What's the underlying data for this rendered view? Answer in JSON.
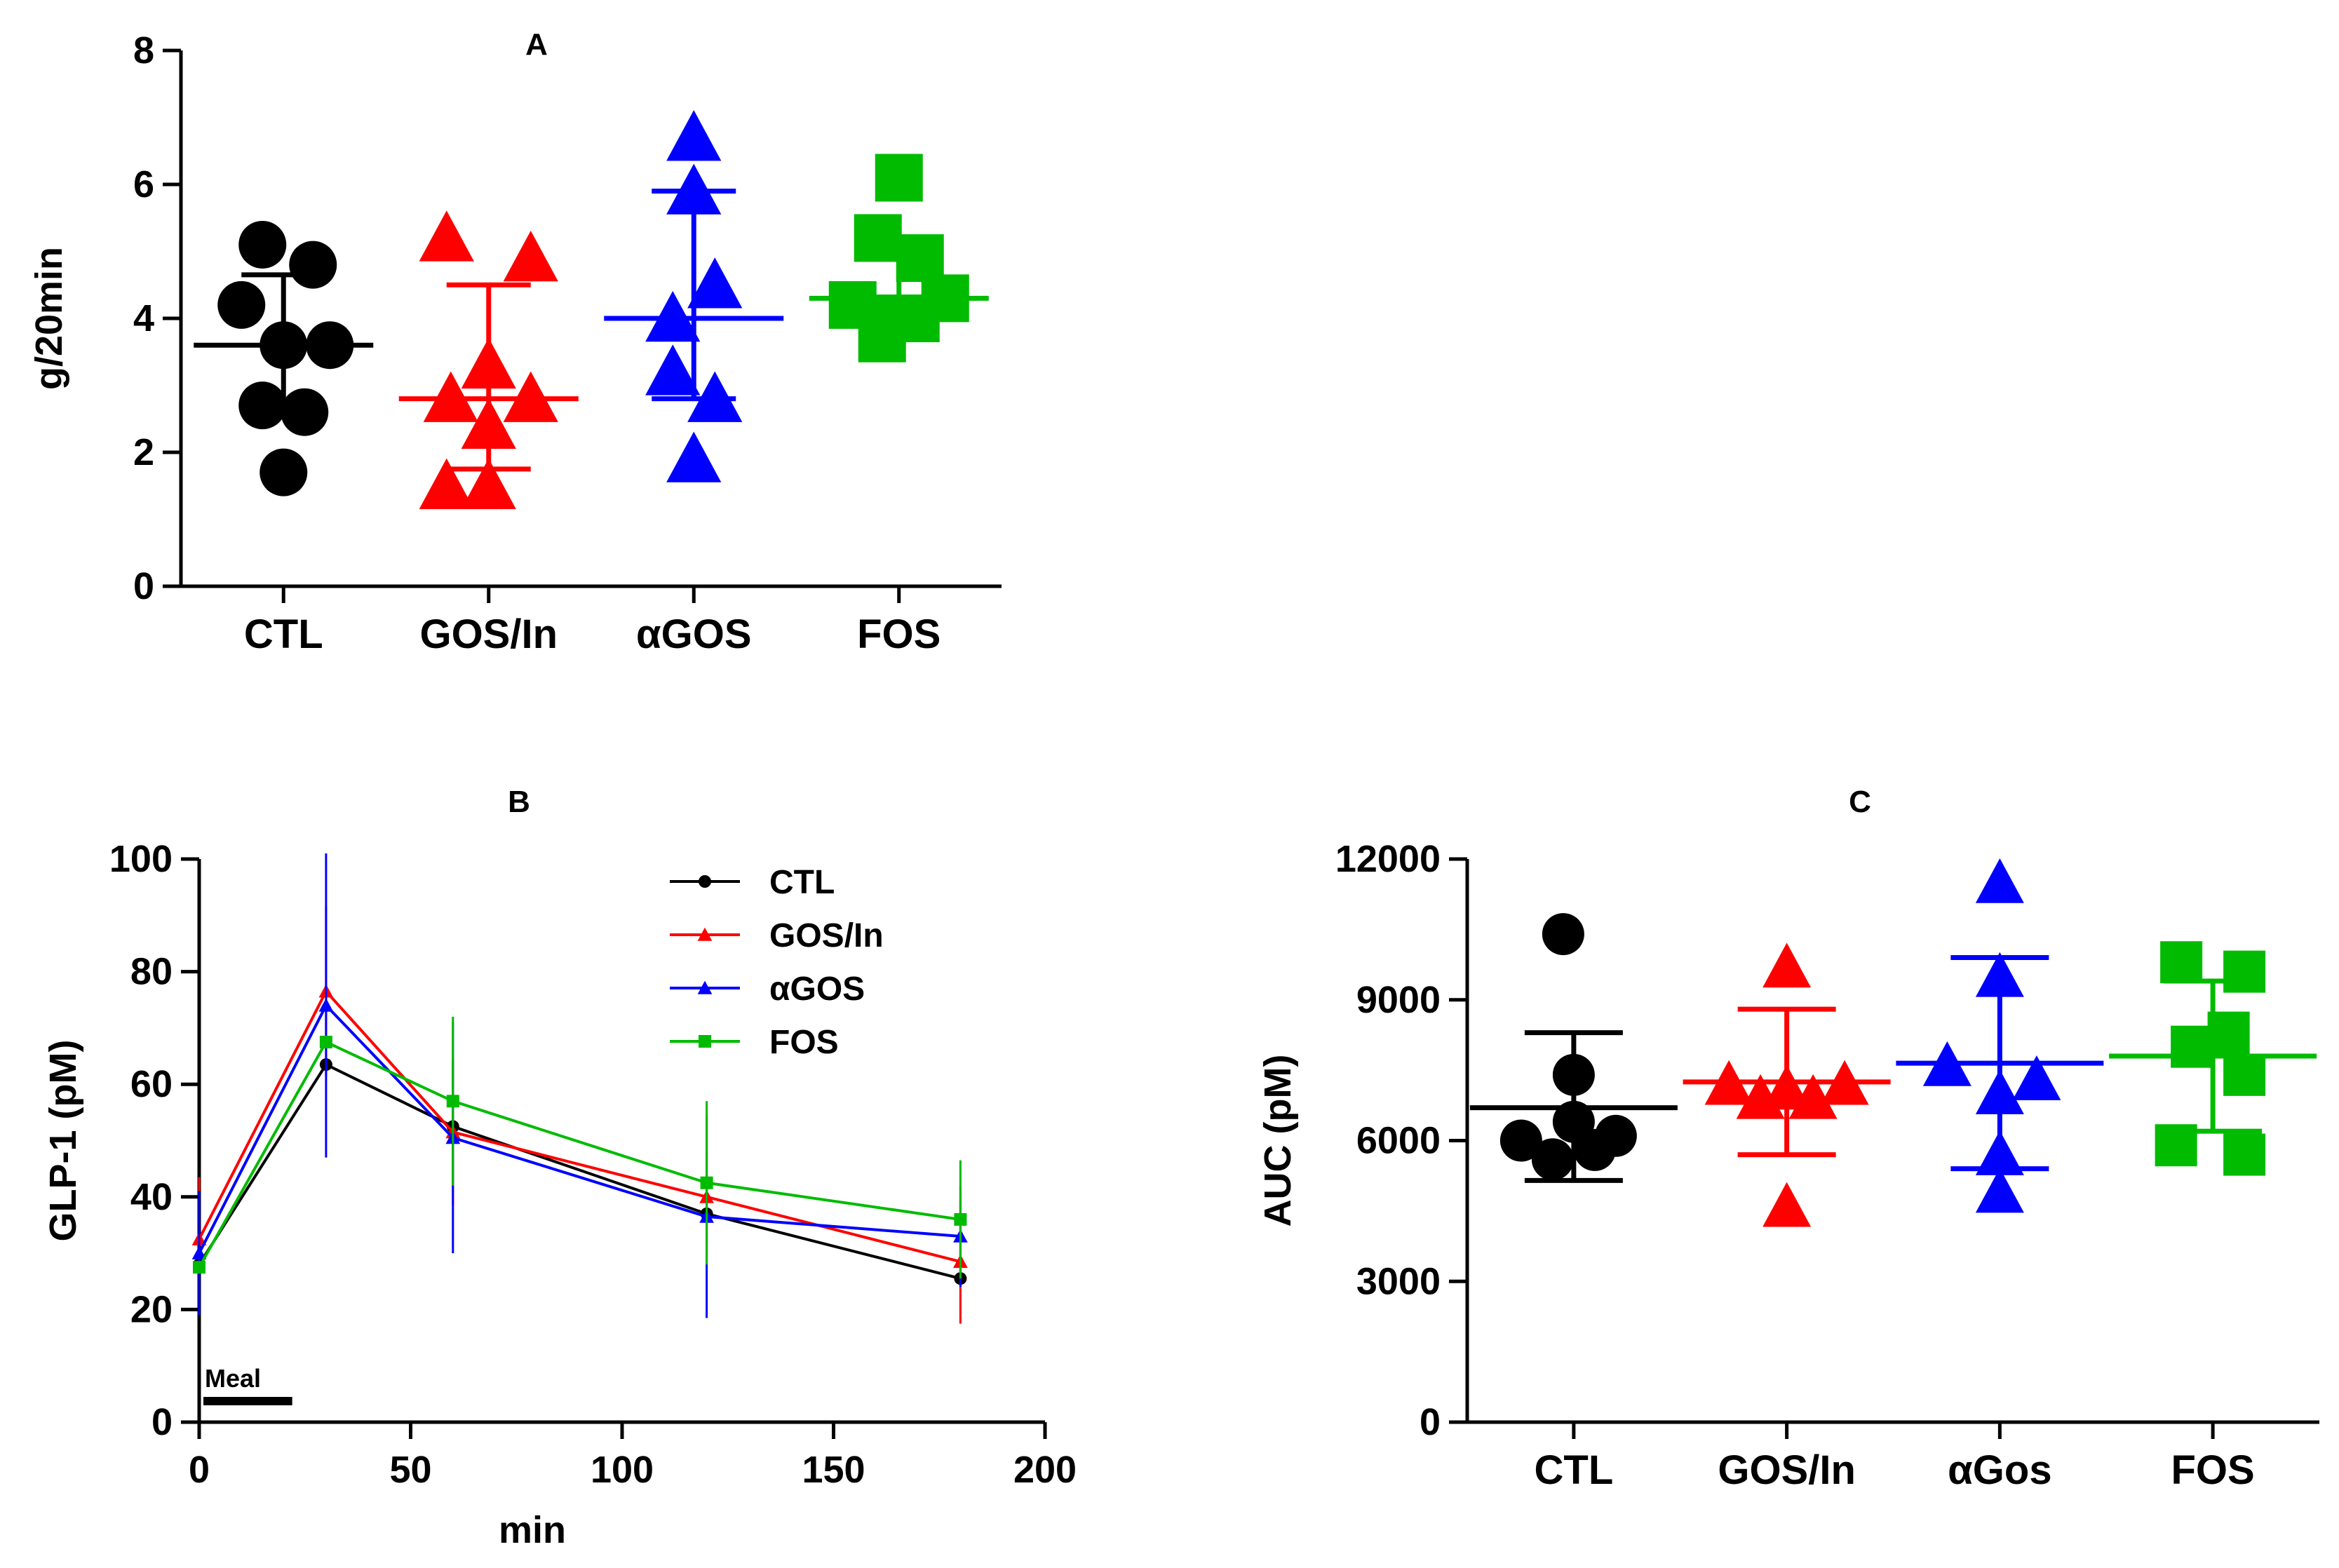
{
  "chart_data": [
    {
      "type": "scatter",
      "panel": "A",
      "title": "A",
      "xlabel": "",
      "ylabel": "g/20min",
      "ylim": [
        0,
        8
      ],
      "yticks": [
        0,
        2,
        4,
        6,
        8
      ],
      "categories": [
        "CTL",
        "GOS/In",
        "αGOS",
        "FOS"
      ],
      "series": [
        {
          "name": "CTL",
          "color": "#000000",
          "marker": "circle",
          "points": [
            5.1,
            4.8,
            4.2,
            3.6,
            3.6,
            2.7,
            2.6,
            1.7
          ],
          "mean": 3.6,
          "sd_low": 2.65,
          "sd_high": 4.65
        },
        {
          "name": "GOS/In",
          "color": "#ff0000",
          "marker": "triangle",
          "points": [
            5.2,
            4.9,
            3.3,
            2.8,
            2.8,
            2.4,
            1.5,
            1.5
          ],
          "mean": 2.8,
          "sd_low": 1.75,
          "sd_high": 4.5
        },
        {
          "name": "αGOS",
          "color": "#0000ff",
          "marker": "triangle",
          "points": [
            6.7,
            5.9,
            4.5,
            4.0,
            3.2,
            2.8,
            1.9
          ],
          "mean": 4.0,
          "sd_low": 2.8,
          "sd_high": 5.9
        },
        {
          "name": "FOS",
          "color": "#00bb00",
          "marker": "square",
          "points": [
            6.1,
            5.2,
            4.9,
            4.3,
            4.2,
            4.0,
            4.0,
            3.7
          ],
          "mean": 4.3,
          "sd_low": 4.05,
          "sd_high": 5.15
        }
      ]
    },
    {
      "type": "line",
      "panel": "B",
      "title": "B",
      "xlabel": "min",
      "ylabel": "GLP-1 (pM)",
      "xlim": [
        0,
        200
      ],
      "ylim": [
        0,
        100
      ],
      "xticks": [
        0,
        50,
        100,
        150,
        200
      ],
      "yticks": [
        0,
        20,
        40,
        60,
        80,
        100
      ],
      "x": [
        0,
        30,
        60,
        120,
        180
      ],
      "annotation": "Meal",
      "meal_interval": [
        0,
        22
      ],
      "series": [
        {
          "name": "CTL",
          "color": "#000000",
          "marker": "circle",
          "values": [
            28,
            63.5,
            52.5,
            37,
            25.5
          ],
          "err": [
            0,
            0,
            0,
            0,
            1
          ]
        },
        {
          "name": "GOS/In",
          "color": "#ff0000",
          "marker": "triangle",
          "values": [
            32.5,
            76.5,
            51.5,
            40,
            28.5
          ],
          "err": [
            11,
            15,
            13,
            8,
            11
          ]
        },
        {
          "name": "αGOS",
          "color": "#0000ff",
          "marker": "triangle",
          "values": [
            30,
            74,
            50.5,
            36.5,
            33
          ],
          "err": [
            11,
            27,
            20.5,
            18,
            9
          ]
        },
        {
          "name": "FOS",
          "color": "#00bb00",
          "marker": "square",
          "values": [
            27.5,
            67.5,
            57,
            42.5,
            36
          ],
          "err": [
            0,
            0,
            15,
            14.5,
            10.5
          ]
        }
      ]
    },
    {
      "type": "scatter",
      "panel": "C",
      "title": "C",
      "xlabel": "",
      "ylabel": "AUC (pM)",
      "ylim": [
        0,
        12000
      ],
      "yticks": [
        0,
        3000,
        6000,
        9000,
        12000
      ],
      "categories": [
        "CTL",
        "GOS/In",
        "αGos",
        "FOS"
      ],
      "series": [
        {
          "name": "CTL",
          "color": "#000000",
          "marker": "circle",
          "points": [
            10400,
            7400,
            6400,
            6100,
            6000,
            5800,
            5600
          ],
          "mean": 6700,
          "sd_low": 5150,
          "sd_high": 8300
        },
        {
          "name": "GOS/In",
          "color": "#ff0000",
          "marker": "triangle",
          "points": [
            9700,
            7200,
            7200,
            7100,
            6900,
            6900,
            4600
          ],
          "mean": 7250,
          "sd_low": 5700,
          "sd_high": 8800
        },
        {
          "name": "αGos",
          "color": "#0000ff",
          "marker": "triangle",
          "points": [
            11500,
            9500,
            7600,
            7300,
            7000,
            5700,
            4900
          ],
          "mean": 7650,
          "sd_low": 5400,
          "sd_high": 9900
        },
        {
          "name": "FOS",
          "color": "#00bb00",
          "marker": "square",
          "points": [
            9800,
            9600,
            8300,
            8000,
            7400,
            5900,
            5700
          ],
          "mean": 7800,
          "sd_low": 6200,
          "sd_high": 9400
        }
      ]
    }
  ]
}
